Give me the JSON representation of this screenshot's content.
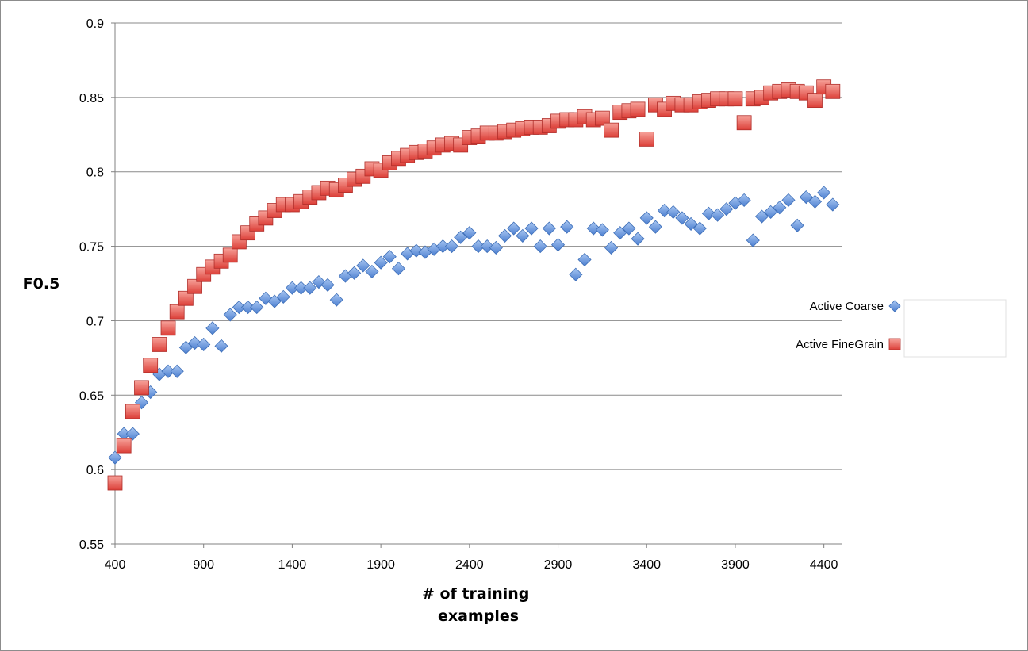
{
  "chart_data": {
    "type": "scatter",
    "title": "",
    "xlabel": "# of training examples",
    "ylabel": "F0.5",
    "xlim": [
      400,
      4500
    ],
    "ylim": [
      0.55,
      0.9
    ],
    "xticks": [
      400,
      900,
      1400,
      1900,
      2400,
      2900,
      3400,
      3900,
      4400
    ],
    "yticks": [
      0.55,
      0.6,
      0.65,
      0.7,
      0.75,
      0.8,
      0.85,
      0.9
    ],
    "grid": "horizontal",
    "legend": "right",
    "series": [
      {
        "name": "Active Coarse",
        "marker": "diamond",
        "color": "#5b8fd6",
        "x": [
          400,
          450,
          500,
          550,
          600,
          650,
          700,
          750,
          800,
          850,
          900,
          950,
          1000,
          1050,
          1100,
          1150,
          1200,
          1250,
          1300,
          1350,
          1400,
          1450,
          1500,
          1550,
          1600,
          1650,
          1700,
          1750,
          1800,
          1850,
          1900,
          1950,
          2000,
          2050,
          2100,
          2150,
          2200,
          2250,
          2300,
          2350,
          2400,
          2450,
          2500,
          2550,
          2600,
          2650,
          2700,
          2750,
          2800,
          2850,
          2900,
          2950,
          3000,
          3050,
          3100,
          3150,
          3200,
          3250,
          3300,
          3350,
          3400,
          3450,
          3500,
          3550,
          3600,
          3650,
          3700,
          3750,
          3800,
          3850,
          3900,
          3950,
          4000,
          4050,
          4100,
          4150,
          4200,
          4250,
          4300,
          4350,
          4400,
          4450
        ],
        "y": [
          0.608,
          0.624,
          0.624,
          0.645,
          0.652,
          0.664,
          0.666,
          0.666,
          0.682,
          0.685,
          0.684,
          0.695,
          0.683,
          0.704,
          0.709,
          0.709,
          0.709,
          0.715,
          0.713,
          0.716,
          0.722,
          0.722,
          0.722,
          0.726,
          0.724,
          0.714,
          0.73,
          0.732,
          0.737,
          0.733,
          0.739,
          0.743,
          0.735,
          0.745,
          0.747,
          0.746,
          0.748,
          0.75,
          0.75,
          0.756,
          0.759,
          0.75,
          0.75,
          0.749,
          0.757,
          0.762,
          0.757,
          0.762,
          0.75,
          0.762,
          0.751,
          0.763,
          0.731,
          0.741,
          0.762,
          0.761,
          0.749,
          0.759,
          0.762,
          0.755,
          0.769,
          0.763,
          0.774,
          0.773,
          0.769,
          0.765,
          0.762,
          0.772,
          0.771,
          0.775,
          0.779,
          0.781,
          0.754,
          0.77,
          0.773,
          0.776,
          0.781,
          0.764,
          0.783,
          0.78,
          0.786,
          0.778
        ]
      },
      {
        "name": "Active FineGrain",
        "marker": "square",
        "color": "#e8524a",
        "x": [
          400,
          450,
          500,
          550,
          600,
          650,
          700,
          750,
          800,
          850,
          900,
          950,
          1000,
          1050,
          1100,
          1150,
          1200,
          1250,
          1300,
          1350,
          1400,
          1450,
          1500,
          1550,
          1600,
          1650,
          1700,
          1750,
          1800,
          1850,
          1900,
          1950,
          2000,
          2050,
          2100,
          2150,
          2200,
          2250,
          2300,
          2350,
          2400,
          2450,
          2500,
          2550,
          2600,
          2650,
          2700,
          2750,
          2800,
          2850,
          2900,
          2950,
          3000,
          3050,
          3100,
          3150,
          3200,
          3250,
          3300,
          3350,
          3400,
          3450,
          3500,
          3550,
          3600,
          3650,
          3700,
          3750,
          3800,
          3850,
          3900,
          3950,
          4000,
          4050,
          4100,
          4150,
          4200,
          4250,
          4300,
          4350,
          4400,
          4450
        ],
        "y": [
          0.591,
          0.616,
          0.639,
          0.655,
          0.67,
          0.684,
          0.695,
          0.706,
          0.715,
          0.723,
          0.731,
          0.736,
          0.74,
          0.744,
          0.753,
          0.759,
          0.765,
          0.769,
          0.774,
          0.778,
          0.778,
          0.78,
          0.783,
          0.786,
          0.789,
          0.788,
          0.791,
          0.795,
          0.797,
          0.802,
          0.801,
          0.806,
          0.809,
          0.811,
          0.813,
          0.814,
          0.816,
          0.818,
          0.819,
          0.818,
          0.823,
          0.824,
          0.826,
          0.826,
          0.827,
          0.828,
          0.829,
          0.83,
          0.83,
          0.831,
          0.834,
          0.835,
          0.835,
          0.837,
          0.835,
          0.836,
          0.828,
          0.84,
          0.841,
          0.842,
          0.822,
          0.845,
          0.842,
          0.846,
          0.845,
          0.845,
          0.847,
          0.848,
          0.849,
          0.849,
          0.849,
          0.833,
          0.849,
          0.85,
          0.853,
          0.854,
          0.855,
          0.854,
          0.853,
          0.848,
          0.857,
          0.854
        ]
      }
    ]
  }
}
